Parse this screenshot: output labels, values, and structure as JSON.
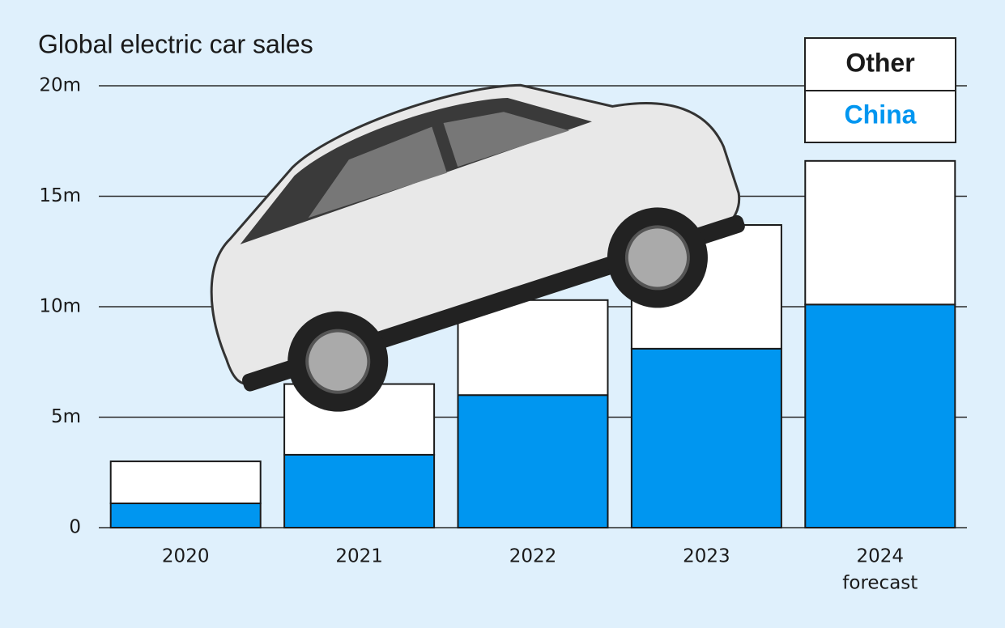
{
  "chart_data": {
    "type": "stacked_bar",
    "title": "Global electric car sales",
    "categories": [
      "2020",
      "2021",
      "2022",
      "2023",
      "2024"
    ],
    "category_note": "forecast",
    "series": [
      {
        "name": "China",
        "color": "#0096f0",
        "values": [
          1.1,
          3.3,
          6.0,
          8.1,
          10.1
        ]
      },
      {
        "name": "Other",
        "color": "#ffffff",
        "values": [
          1.9,
          3.2,
          4.3,
          5.6,
          6.5
        ]
      }
    ],
    "ylim": [
      0,
      20
    ],
    "yticks": [
      0,
      {
        "value": 5,
        "label": "5m"
      },
      {
        "value": 10,
        "label": "10m"
      },
      {
        "value": 15,
        "label": "15m"
      },
      {
        "value": 20,
        "label": "20m"
      }
    ],
    "grid": true,
    "legend": "upper right"
  }
}
